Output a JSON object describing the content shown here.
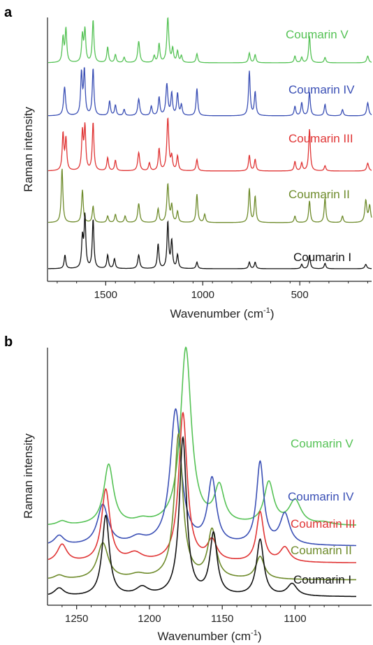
{
  "chart_data": [
    {
      "panel": "a",
      "type": "line",
      "xlabel": "Wavenumber (cm",
      "xlabel_sup": "-1",
      "xlabel_end": ")",
      "ylabel": "Raman intensity",
      "xlim": [
        1800,
        130
      ],
      "x_reversed": true,
      "xticks": [
        1500,
        1000,
        500
      ],
      "grid": false,
      "series": [
        {
          "name": "Coumarin V",
          "color": "#55c255",
          "offset": 4,
          "peaks": [
            [
              1720,
              0.55,
              5
            ],
            [
              1705,
              0.75,
              5
            ],
            [
              1620,
              0.6,
              5
            ],
            [
              1607,
              0.72,
              5
            ],
            [
              1565,
              0.95,
              5
            ],
            [
              1490,
              0.35,
              5
            ],
            [
              1450,
              0.18,
              5
            ],
            [
              1405,
              0.12,
              5
            ],
            [
              1330,
              0.48,
              6
            ],
            [
              1250,
              0.15,
              5
            ],
            [
              1225,
              0.42,
              5
            ],
            [
              1180,
              1.0,
              6
            ],
            [
              1155,
              0.3,
              5
            ],
            [
              1130,
              0.25,
              5
            ],
            [
              1110,
              0.15,
              5
            ],
            [
              1030,
              0.2,
              5
            ],
            [
              760,
              0.22,
              5
            ],
            [
              730,
              0.18,
              5
            ],
            [
              525,
              0.15,
              5
            ],
            [
              490,
              0.12,
              5
            ],
            [
              450,
              0.6,
              5
            ],
            [
              370,
              0.12,
              5
            ],
            [
              150,
              0.15,
              6
            ]
          ]
        },
        {
          "name": "Coumarin IV",
          "color": "#3a4fb5",
          "offset": 3,
          "peaks": [
            [
              1712,
              0.55,
              6
            ],
            [
              1625,
              0.8,
              5
            ],
            [
              1610,
              0.85,
              5
            ],
            [
              1565,
              0.9,
              5
            ],
            [
              1480,
              0.28,
              5
            ],
            [
              1450,
              0.2,
              5
            ],
            [
              1405,
              0.12,
              5
            ],
            [
              1330,
              0.32,
              6
            ],
            [
              1265,
              0.18,
              5
            ],
            [
              1225,
              0.35,
              5
            ],
            [
              1185,
              0.6,
              6
            ],
            [
              1160,
              0.42,
              5
            ],
            [
              1130,
              0.42,
              5
            ],
            [
              1110,
              0.2,
              5
            ],
            [
              1030,
              0.52,
              5
            ],
            [
              760,
              0.85,
              5
            ],
            [
              730,
              0.45,
              5
            ],
            [
              525,
              0.18,
              5
            ],
            [
              490,
              0.25,
              5
            ],
            [
              450,
              0.45,
              5
            ],
            [
              370,
              0.22,
              5
            ],
            [
              280,
              0.12,
              5
            ],
            [
              150,
              0.25,
              6
            ]
          ]
        },
        {
          "name": "Coumarin III",
          "color": "#e03434",
          "offset": 2,
          "peaks": [
            [
              1720,
              0.7,
              5
            ],
            [
              1705,
              0.6,
              5
            ],
            [
              1620,
              0.72,
              5
            ],
            [
              1607,
              0.82,
              5
            ],
            [
              1565,
              0.92,
              5
            ],
            [
              1490,
              0.25,
              5
            ],
            [
              1450,
              0.2,
              5
            ],
            [
              1330,
              0.35,
              6
            ],
            [
              1275,
              0.15,
              5
            ],
            [
              1225,
              0.42,
              5
            ],
            [
              1180,
              1.0,
              6
            ],
            [
              1160,
              0.25,
              5
            ],
            [
              1130,
              0.28,
              5
            ],
            [
              1030,
              0.22,
              5
            ],
            [
              760,
              0.3,
              5
            ],
            [
              730,
              0.22,
              5
            ],
            [
              525,
              0.18,
              5
            ],
            [
              490,
              0.15,
              5
            ],
            [
              450,
              0.8,
              5
            ],
            [
              370,
              0.1,
              5
            ],
            [
              150,
              0.15,
              6
            ]
          ]
        },
        {
          "name": "Coumarin II",
          "color": "#6e8b2b",
          "offset": 1,
          "peaks": [
            [
              1725,
              1.0,
              5
            ],
            [
              1620,
              0.6,
              5
            ],
            [
              1565,
              0.3,
              5
            ],
            [
              1490,
              0.12,
              5
            ],
            [
              1450,
              0.15,
              5
            ],
            [
              1400,
              0.12,
              5
            ],
            [
              1330,
              0.35,
              6
            ],
            [
              1230,
              0.25,
              5
            ],
            [
              1180,
              0.7,
              6
            ],
            [
              1160,
              0.3,
              5
            ],
            [
              1130,
              0.2,
              5
            ],
            [
              1030,
              0.52,
              5
            ],
            [
              990,
              0.15,
              5
            ],
            [
              760,
              0.62,
              5
            ],
            [
              730,
              0.48,
              5
            ],
            [
              525,
              0.12,
              5
            ],
            [
              450,
              0.4,
              5
            ],
            [
              370,
              0.45,
              5
            ],
            [
              280,
              0.12,
              5
            ],
            [
              160,
              0.4,
              6
            ],
            [
              140,
              0.3,
              6
            ]
          ]
        },
        {
          "name": "Coumarin I",
          "color": "#111111",
          "offset": 0,
          "peaks": [
            [
              1710,
              0.25,
              5
            ],
            [
              1620,
              0.55,
              5
            ],
            [
              1607,
              0.95,
              5
            ],
            [
              1565,
              0.9,
              5
            ],
            [
              1490,
              0.25,
              5
            ],
            [
              1455,
              0.18,
              5
            ],
            [
              1330,
              0.25,
              6
            ],
            [
              1230,
              0.45,
              5
            ],
            [
              1180,
              0.85,
              5
            ],
            [
              1160,
              0.5,
              5
            ],
            [
              1130,
              0.25,
              5
            ],
            [
              1030,
              0.12,
              5
            ],
            [
              760,
              0.12,
              5
            ],
            [
              730,
              0.12,
              5
            ],
            [
              490,
              0.08,
              5
            ],
            [
              450,
              0.25,
              5
            ],
            [
              370,
              0.1,
              5
            ],
            [
              160,
              0.08,
              6
            ]
          ]
        }
      ]
    },
    {
      "panel": "b",
      "type": "line",
      "xlabel": "Wavenumber (cm",
      "xlabel_sup": "-1",
      "xlabel_end": ")",
      "ylabel": "Raman intensity",
      "xlim": [
        1270,
        1058
      ],
      "x_reversed": true,
      "xticks": [
        1250,
        1200,
        1150,
        1100
      ],
      "grid": false,
      "series": [
        {
          "name": "Coumarin V",
          "color": "#55c255",
          "base": 0.88,
          "peaks": [
            [
              1260,
              0.05,
              4
            ],
            [
              1228,
              0.75,
              4
            ],
            [
              1205,
              0.05,
              6
            ],
            [
              1175,
              2.2,
              4.5
            ],
            [
              1152,
              0.45,
              4
            ],
            [
              1118,
              0.52,
              4
            ],
            [
              1100,
              0.3,
              5
            ],
            [
              1080,
              0.03,
              6
            ]
          ]
        },
        {
          "name": "Coumarin IV",
          "color": "#3a4fb5",
          "base": 0.63,
          "peaks": [
            [
              1262,
              0.12,
              4
            ],
            [
              1232,
              0.5,
              4.5
            ],
            [
              1208,
              0.08,
              6
            ],
            [
              1182,
              1.68,
              4.5
            ],
            [
              1157,
              0.8,
              3.5
            ],
            [
              1124,
              1.02,
              3
            ],
            [
              1107,
              0.38,
              4
            ]
          ]
        },
        {
          "name": "Coumarin III",
          "color": "#e03434",
          "base": 0.42,
          "peaks": [
            [
              1260,
              0.22,
              4
            ],
            [
              1230,
              0.9,
              3.5
            ],
            [
              1210,
              0.1,
              6
            ],
            [
              1177,
              1.85,
              3.5
            ],
            [
              1157,
              0.25,
              4
            ],
            [
              1124,
              0.62,
              3
            ],
            [
              1107,
              0.18,
              4
            ]
          ]
        },
        {
          "name": "Coumarin II",
          "color": "#6e8b2b",
          "base": 0.21,
          "peaks": [
            [
              1262,
              0.05,
              4
            ],
            [
              1232,
              0.45,
              4.5
            ],
            [
              1208,
              0.05,
              6
            ],
            [
              1180,
              1.8,
              3.5
            ],
            [
              1157,
              0.6,
              3.5
            ],
            [
              1124,
              0.28,
              3.5
            ]
          ]
        },
        {
          "name": "Coumarin I",
          "color": "#111111",
          "base": 0.0,
          "peaks": [
            [
              1262,
              0.1,
              4
            ],
            [
              1230,
              1.0,
              3
            ],
            [
              1205,
              0.1,
              5
            ],
            [
              1177,
              1.96,
              3
            ],
            [
              1156,
              0.76,
              3
            ],
            [
              1124,
              0.7,
              3
            ],
            [
              1102,
              0.15,
              4
            ]
          ]
        }
      ]
    }
  ]
}
